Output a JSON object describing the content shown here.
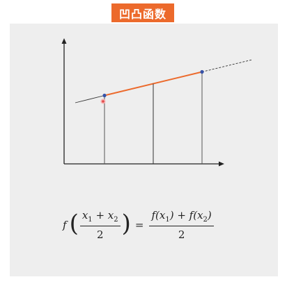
{
  "title": "凹凸函数",
  "formula": {
    "lhs_f": "f",
    "lhs_numerator": [
      "x",
      "1",
      " + x",
      "2"
    ],
    "lhs_denominator": "2",
    "equals": "=",
    "rhs_numerator": [
      "f(x",
      "1",
      ") + f(x",
      "2",
      ")"
    ],
    "rhs_denominator": "2"
  },
  "colors": {
    "accent": "#ec6a2c",
    "panel": "#eeeeee",
    "point": "#3552a8",
    "highlight_point": "#e24b4b",
    "axis": "#222222"
  }
}
